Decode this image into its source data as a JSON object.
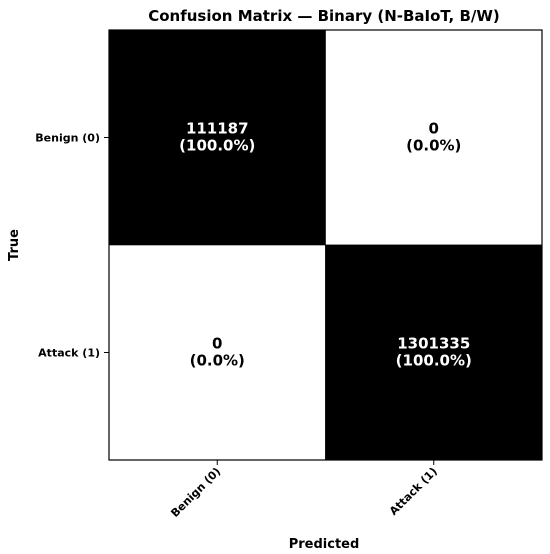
{
  "chart_data": {
    "type": "heatmap",
    "title": "Confusion Matrix — Binary (N-BaIoT, B/W)",
    "xlabel": "Predicted",
    "ylabel": "True",
    "x_categories": [
      "Benign (0)",
      "Attack (1)"
    ],
    "y_categories": [
      "Benign (0)",
      "Attack (1)"
    ],
    "matrix": [
      [
        111187,
        0
      ],
      [
        0,
        1301335
      ]
    ],
    "cell_labels": [
      [
        {
          "count": "111187",
          "percent": "(100.0%)"
        },
        {
          "count": "0",
          "percent": "(0.0%)"
        }
      ],
      [
        {
          "count": "0",
          "percent": "(0.0%)"
        },
        {
          "count": "1301335",
          "percent": "(100.0%)"
        }
      ]
    ],
    "row_percent": [
      [
        100.0,
        0.0
      ],
      [
        0.0,
        100.0
      ]
    ],
    "colormap": {
      "high": "#000000",
      "low": "#ffffff",
      "text_on_high": "#ffffff",
      "text_on_low": "#000000"
    }
  }
}
